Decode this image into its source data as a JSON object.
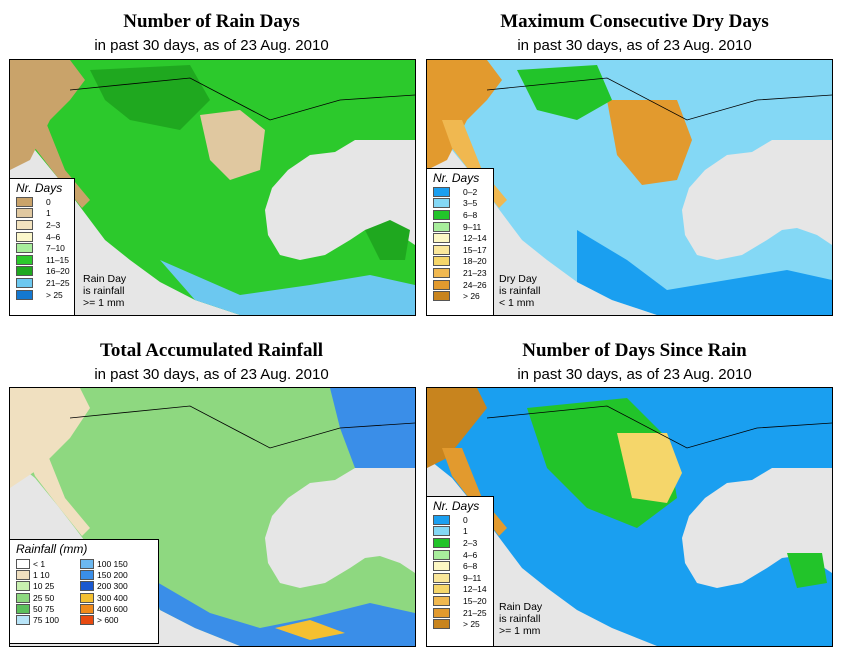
{
  "subtitle": "in past 30 days, as of  23 Aug. 2010",
  "panels": [
    {
      "id": "rain_days",
      "title": "Number of Rain Days",
      "subtitle": "in past 30 days, as of  23 Aug. 2010",
      "legend_title": "Nr. Days",
      "legend": [
        {
          "label": "0",
          "color": "#c9a36a"
        },
        {
          "label": "1",
          "color": "#e0c8a0"
        },
        {
          "label": "2–3",
          "color": "#f3e3bf"
        },
        {
          "label": "4–6",
          "color": "#fbf7cb"
        },
        {
          "label": "7–10",
          "color": "#a8ee9c"
        },
        {
          "label": "11–15",
          "color": "#2cc92c"
        },
        {
          "label": "16–20",
          "color": "#1fa81f"
        },
        {
          "label": "21–25",
          "color": "#6cc8f0"
        },
        {
          "label": "> 25",
          "color": "#1478d0"
        }
      ],
      "note": [
        "Rain Day",
        "is rainfall",
        ">= 1 mm"
      ]
    },
    {
      "id": "dry_days",
      "title": "Maximum Consecutive Dry Days",
      "subtitle": "in past 30 days, as of  23 Aug. 2010",
      "legend_title": "Nr. Days",
      "legend": [
        {
          "label": "0–2",
          "color": "#1a9ff0"
        },
        {
          "label": "3–5",
          "color": "#84d8f5"
        },
        {
          "label": "6–8",
          "color": "#22c42a"
        },
        {
          "label": "9–11",
          "color": "#a8ee9c"
        },
        {
          "label": "12–14",
          "color": "#fcf8c4"
        },
        {
          "label": "15–17",
          "color": "#fae79a"
        },
        {
          "label": "18–20",
          "color": "#f5d66a"
        },
        {
          "label": "21–23",
          "color": "#f0b850"
        },
        {
          "label": "24–26",
          "color": "#e29a2e"
        },
        {
          "label": "> 26",
          "color": "#c8841e"
        }
      ],
      "note": [
        "Dry Day",
        "is rainfall",
        "< 1 mm"
      ]
    },
    {
      "id": "rainfall",
      "title": "Total Accumulated Rainfall",
      "subtitle": "in past 30 days, as of  23 Aug. 2010",
      "legend_title": "Rainfall (mm)",
      "legend": [
        {
          "label": "< 1",
          "color": "#ffffff"
        },
        {
          "label": "100  150",
          "color": "#6cb8f0"
        },
        {
          "label": "1    10",
          "color": "#f0e0c0"
        },
        {
          "label": "150  200",
          "color": "#3a8ee8"
        },
        {
          "label": "10   25",
          "color": "#c8f0b0"
        },
        {
          "label": "200  300",
          "color": "#1a58d0"
        },
        {
          "label": "25   50",
          "color": "#8ed880"
        },
        {
          "label": "300  400",
          "color": "#f5c030"
        },
        {
          "label": "50   75",
          "color": "#5cc05c"
        },
        {
          "label": "400  600",
          "color": "#f08a1a"
        },
        {
          "label": "75  100",
          "color": "#b8e4f8"
        },
        {
          "label": "> 600",
          "color": "#e84a10"
        }
      ]
    },
    {
      "id": "since_rain",
      "title": "Number of Days Since Rain",
      "subtitle": "in past 30 days, as of  23 Aug. 2010",
      "legend_title": "Nr. Days",
      "legend": [
        {
          "label": "0",
          "color": "#1a9ff0"
        },
        {
          "label": "1",
          "color": "#84d8f5"
        },
        {
          "label": "2–3",
          "color": "#22c42a"
        },
        {
          "label": "4–6",
          "color": "#a8ee9c"
        },
        {
          "label": "6–8",
          "color": "#fcf8c4"
        },
        {
          "label": "9–11",
          "color": "#fae79a"
        },
        {
          "label": "12–14",
          "color": "#f5d66a"
        },
        {
          "label": "15–20",
          "color": "#f0b850"
        },
        {
          "label": "21–25",
          "color": "#e29a2e"
        },
        {
          "label": "> 25",
          "color": "#c8841e"
        }
      ],
      "note": [
        "Rain Day",
        "is rainfall",
        ">= 1 mm"
      ]
    }
  ],
  "colors": {
    "ocean": "#e6e6e6",
    "border": "#000000"
  }
}
